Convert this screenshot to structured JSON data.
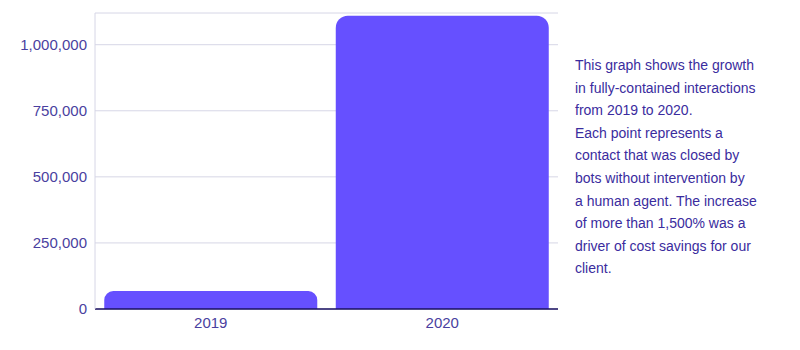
{
  "chart_data": {
    "type": "bar",
    "categories": [
      "2019",
      "2020"
    ],
    "values": [
      68000,
      1110000
    ],
    "color": "#6650ff",
    "ylim": [
      0,
      1120000
    ],
    "yticks": [
      0,
      {
        "value": 250000,
        "label": "250,000"
      },
      {
        "value": 500000,
        "label": "500,000"
      },
      {
        "value": 750000,
        "label": "750,000"
      },
      {
        "value": 1000000,
        "label": "1,000,000"
      }
    ],
    "grid": true,
    "annotation": [
      "This graph shows the growth",
      "in fully-contained interactions",
      "from 2019 to 2020.",
      "Each point represents a",
      "contact that was closed by",
      "bots without intervention by",
      "a human agent. The increase",
      "of more than 1,500% was a",
      "driver of cost savings for our",
      "client."
    ]
  }
}
